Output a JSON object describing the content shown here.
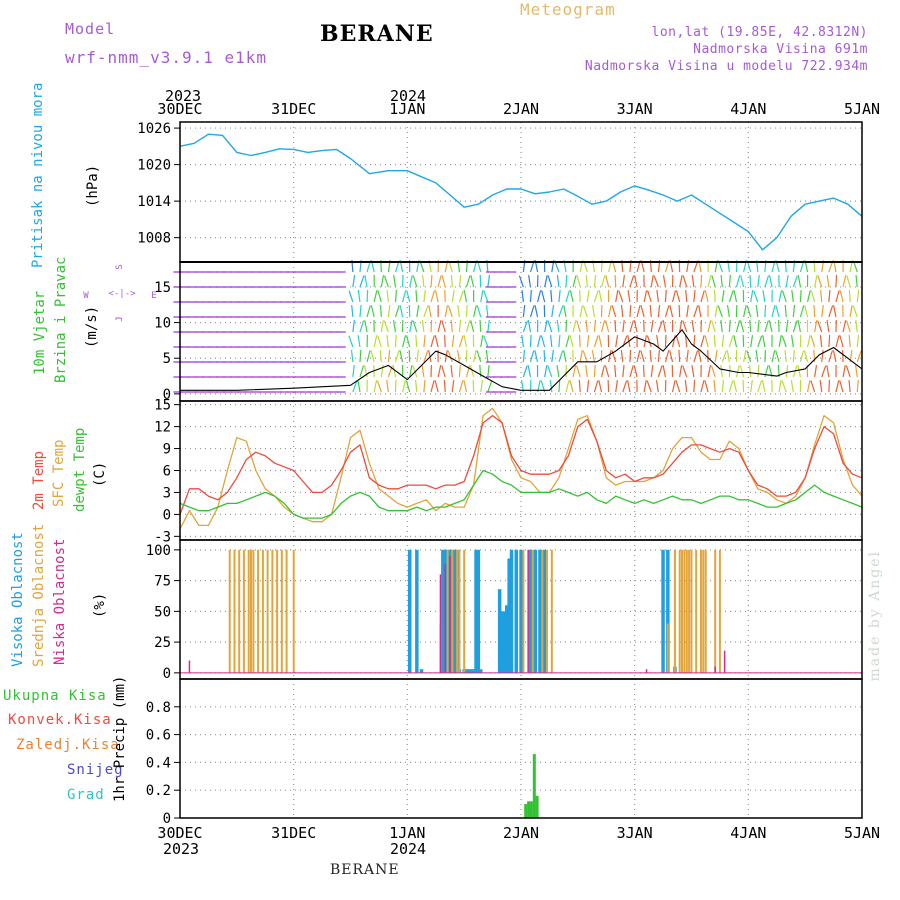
{
  "header": {
    "model_label": "Model",
    "model_name": "wrf-nmm_v3.9.1 e1km",
    "station": "BERANE",
    "product": "Meteogram",
    "coords": "lon,lat (19.85E, 42.8312N)",
    "elevation": "Nadmorska Visina 691m",
    "model_elevation": "Nadmorska Visina u modelu 722.934m"
  },
  "footer": {
    "station": "BERANE",
    "credit": "made by Angel"
  },
  "time_axis": {
    "top_years": [
      "2023",
      "2024"
    ],
    "bottom_years": [
      "2023",
      "2024"
    ],
    "ticks": [
      "30DEC",
      "31DEC",
      "1JAN",
      "2JAN",
      "3JAN",
      "4JAN",
      "5JAN"
    ]
  },
  "panel_labels": {
    "pressure": [
      "Pritisak na nivou mora",
      "(hPa)"
    ],
    "wind": [
      "10m Vjetar",
      "Brzina i Pravac",
      "(m/s)"
    ],
    "compass": [
      "S",
      "<-|->",
      "W",
      "E",
      "J"
    ],
    "temp": [
      "2m Temp",
      "SFC Temp",
      "dewpt Temp",
      "(C)"
    ],
    "cloud": [
      "Visoka Oblacnost",
      "Srednja Oblacnost",
      "Niska Oblacnost",
      "(%)"
    ],
    "precip_axis": [
      "1hr Precip (mm)"
    ],
    "precip_legend": [
      "Ukupna Kisa",
      "Konvek.Kisa",
      "Zaledj.Kisa",
      "Snijeg",
      "Grad"
    ]
  },
  "colors": {
    "pressure": "#1fa8e6",
    "t2m": "#ee4b3d",
    "tsfc": "#e3a43a",
    "dewpt": "#33c233",
    "cloud_high": "#1f9fdf",
    "cloud_mid": "#e3a43a",
    "cloud_low": "#d6288e",
    "rain_total": "#33c233",
    "rain_conv": "#ee4b3d",
    "rain_freezing": "#f08030",
    "snow": "#4a4ad6",
    "hail": "#2ec4c4",
    "wind_purple": "#9a30d6",
    "grid": "#9a9a9a"
  },
  "chart_data": [
    {
      "type": "line",
      "panel": "pressure",
      "ylim": [
        1004,
        1027
      ],
      "yticks": [
        1008,
        1014,
        1020,
        1026
      ],
      "x_unit": "hours since 30DEC 00",
      "x": [
        0,
        3,
        6,
        9,
        12,
        15,
        18,
        21,
        24,
        27,
        30,
        33,
        36,
        40,
        44,
        48,
        51,
        54,
        57,
        60,
        63,
        66,
        69,
        72,
        75,
        78,
        81,
        84,
        87,
        90,
        93,
        96,
        99,
        102,
        105,
        108,
        111,
        114,
        117,
        120,
        123,
        126,
        129,
        132,
        135,
        138,
        141,
        144
      ],
      "values": [
        1023,
        1023.5,
        1025,
        1024.8,
        1022,
        1021.5,
        1022,
        1022.6,
        1022.5,
        1022,
        1022.3,
        1022.5,
        1021,
        1018.5,
        1019,
        1019,
        1018,
        1017,
        1015,
        1013,
        1013.5,
        1015,
        1016,
        1016,
        1015.2,
        1015.5,
        1016,
        1014.8,
        1013.5,
        1014,
        1015.5,
        1016.5,
        1015.8,
        1015,
        1014,
        1015,
        1013.5,
        1012,
        1010.5,
        1009,
        1006,
        1008,
        1011.5,
        1013.5,
        1014,
        1014.5,
        1013.5,
        1011.5
      ]
    },
    {
      "type": "line",
      "panel": "wind_speed",
      "ylim": [
        -1,
        18.5
      ],
      "yticks": [
        0,
        5,
        10,
        15
      ],
      "x": [
        0,
        12,
        24,
        36,
        40,
        44,
        48,
        54,
        56,
        60,
        64,
        68,
        72,
        78,
        84,
        88,
        92,
        96,
        100,
        102,
        106,
        108,
        110,
        114,
        118,
        120,
        126,
        128,
        132,
        135,
        138,
        141,
        144
      ],
      "values": [
        0.5,
        0.5,
        0.8,
        1.2,
        3,
        4,
        2,
        6,
        5.5,
        4,
        2.5,
        1,
        0.5,
        0.5,
        4.5,
        4.5,
        6,
        8,
        7,
        6,
        9,
        7,
        6,
        3.5,
        3,
        3,
        2.5,
        3,
        3.5,
        5.5,
        6.5,
        5,
        3.5
      ]
    },
    {
      "type": "line",
      "panel": "temperature",
      "ylim": [
        -3.5,
        15.5
      ],
      "yticks": [
        -3,
        0,
        3,
        6,
        9,
        12,
        15
      ],
      "x": [
        0,
        2,
        4,
        6,
        8,
        10,
        12,
        14,
        16,
        18,
        20,
        22,
        24,
        26,
        28,
        30,
        32,
        34,
        36,
        38,
        40,
        42,
        44,
        46,
        48,
        50,
        52,
        54,
        56,
        58,
        60,
        62,
        64,
        66,
        68,
        70,
        72,
        74,
        76,
        78,
        80,
        82,
        84,
        86,
        88,
        90,
        92,
        94,
        96,
        98,
        100,
        102,
        104,
        106,
        108,
        110,
        112,
        114,
        116,
        118,
        120,
        122,
        124,
        126,
        128,
        130,
        132,
        134,
        136,
        138,
        140,
        142,
        144
      ],
      "series": [
        {
          "name": "2m Temp",
          "values": [
            0,
            3.5,
            3.5,
            2.5,
            2,
            3,
            5,
            7.5,
            8.5,
            8,
            7,
            6.5,
            6,
            4.5,
            3,
            3,
            4,
            6,
            8.5,
            9.5,
            5,
            4,
            3.5,
            3.5,
            4,
            4,
            4,
            3.5,
            4,
            4,
            4.5,
            8,
            12.5,
            13.5,
            12.5,
            8,
            6,
            5.5,
            5.5,
            5.5,
            6,
            8,
            12,
            13,
            10,
            6,
            5,
            5.5,
            4.5,
            5,
            5,
            5.5,
            7,
            8.5,
            9.5,
            9.5,
            9,
            8.5,
            9,
            8.5,
            6,
            4,
            3.5,
            2.5,
            2.5,
            3,
            5,
            9,
            12,
            11,
            7,
            5.5,
            5
          ]
        },
        {
          "name": "SFC Temp",
          "values": [
            -2,
            0.5,
            -1.5,
            -1.5,
            1,
            6,
            10.5,
            10,
            6,
            3.5,
            2.5,
            1,
            0,
            -0.5,
            -1,
            -1,
            0,
            5,
            10.5,
            11.5,
            7,
            3.5,
            2.5,
            1.5,
            1,
            1.5,
            2,
            0.5,
            1.5,
            1,
            1,
            4,
            13.5,
            14.5,
            12.5,
            7.5,
            5,
            4.5,
            3,
            3,
            5,
            9,
            13,
            13.5,
            10,
            5,
            4,
            4.5,
            4.5,
            4.5,
            5,
            6,
            9,
            10.5,
            10.5,
            8.5,
            7.5,
            7.5,
            10,
            9,
            6,
            3.5,
            3,
            2,
            1.5,
            2.5,
            5,
            9.5,
            13.5,
            12.5,
            7.5,
            4,
            2.5
          ]
        },
        {
          "name": "dewpt Temp",
          "values": [
            1.5,
            1,
            0.5,
            0.5,
            1,
            1.5,
            1.5,
            2,
            2.5,
            3,
            2.5,
            1.5,
            0,
            -0.5,
            -0.5,
            -0.5,
            0,
            1.5,
            2.5,
            3,
            2.5,
            1,
            0.5,
            0.5,
            0.5,
            1,
            0.5,
            1,
            1,
            1.5,
            2,
            4,
            6,
            5.5,
            4.5,
            4,
            3,
            3,
            3,
            3,
            3.5,
            3,
            2.5,
            3,
            2,
            1.5,
            2.5,
            2,
            1.5,
            2,
            1.5,
            2,
            2.5,
            2,
            2,
            1.5,
            2,
            2.5,
            2.5,
            2,
            2,
            1.5,
            1,
            1,
            1.5,
            2,
            3,
            4,
            3,
            2.5,
            2,
            1.5,
            1
          ]
        }
      ]
    },
    {
      "type": "bar",
      "panel": "cloud_cover",
      "ylim": [
        -5,
        108
      ],
      "yticks": [
        0,
        25,
        50,
        75,
        100
      ],
      "series": [
        {
          "name": "Visoka Oblacnost",
          "x": [
            48.5,
            50,
            51,
            55.5,
            56,
            56.5,
            57,
            57.5,
            58,
            58.5,
            59,
            60,
            60.5,
            61,
            61.5,
            62,
            62.5,
            63,
            63.5,
            67.5,
            68,
            68.5,
            69,
            69.5,
            70,
            71,
            72,
            74,
            75,
            76,
            77,
            102,
            103,
            104.5
          ],
          "values": [
            100,
            100,
            3,
            100,
            100,
            100,
            100,
            100,
            100,
            100,
            3,
            3,
            3,
            3,
            3,
            3,
            100,
            100,
            3,
            68,
            50,
            50,
            55,
            93,
            100,
            100,
            100,
            100,
            100,
            100,
            100,
            100,
            100,
            5
          ]
        },
        {
          "name": "Srednja Oblacnost",
          "x": [
            10.5,
            11.5,
            12.5,
            13.5,
            14.5,
            15,
            15.5,
            16.5,
            17.5,
            18.5,
            19.5,
            20.5,
            21.5,
            22.5,
            24,
            55,
            56.5,
            57.5,
            58.5,
            59,
            60,
            72.5,
            74.5,
            76.5,
            77.5,
            78.5,
            103,
            104.5,
            105.5,
            106,
            106.5,
            107,
            107.5,
            108,
            109,
            110,
            110.5,
            111,
            113,
            114
          ],
          "values": [
            100,
            100,
            100,
            100,
            100,
            100,
            100,
            100,
            100,
            100,
            100,
            100,
            100,
            100,
            100,
            40,
            100,
            100,
            100,
            100,
            100,
            100,
            100,
            100,
            100,
            100,
            40,
            100,
            100,
            100,
            100,
            100,
            100,
            100,
            100,
            100,
            100,
            100,
            100,
            100
          ]
        },
        {
          "name": "Niska Oblacnost",
          "x": [
            2,
            55,
            56,
            57,
            73.5,
            98.5,
            113,
            115
          ],
          "values": [
            10,
            80,
            88,
            95,
            100,
            3,
            5,
            18
          ]
        }
      ]
    },
    {
      "type": "bar",
      "panel": "precipitation",
      "ylim": [
        0,
        1.0
      ],
      "yticks": [
        0,
        0.2,
        0.4,
        0.6,
        0.8
      ],
      "series": [
        {
          "name": "Ukupna Kisa",
          "x": [
            73.0,
            73.6,
            74.2,
            74.8,
            75.4
          ],
          "values": [
            0.1,
            0.12,
            0.12,
            0.46,
            0.16
          ]
        }
      ]
    }
  ]
}
